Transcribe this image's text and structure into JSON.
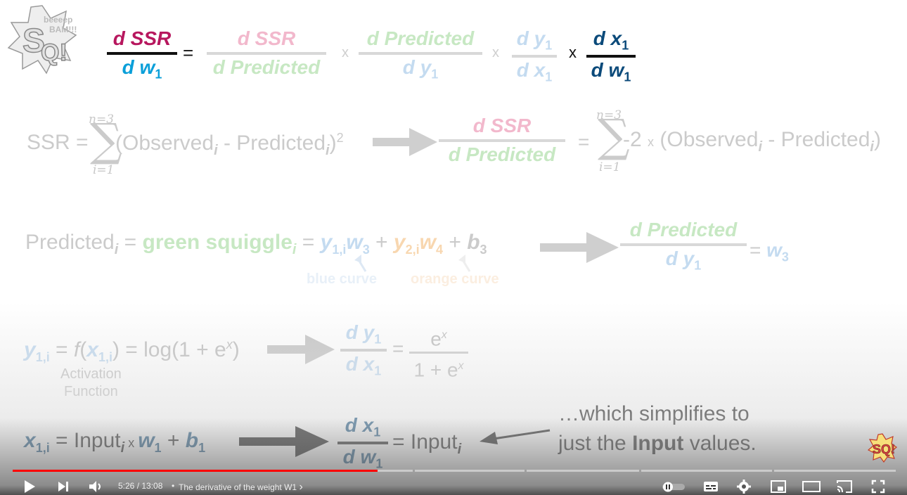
{
  "slide": {
    "chain": {
      "lhs_num": "d SSR",
      "lhs_den_d": "d ",
      "lhs_den_w": "w",
      "lhs_den_sub": "1",
      "equals": "=",
      "f1_num": "d SSR",
      "f1_den": "d Predicted",
      "times1": "x",
      "f2_num": "d Predicted",
      "f2_den_d": "d y",
      "f2_den_sub": "1",
      "times2": "x",
      "f3_num_d": "d y",
      "f3_num_sub": "1",
      "f3_den_d": "d x",
      "f3_den_sub": "1",
      "times3": "x",
      "f4_num_d": "d x",
      "f4_num_sub": "1",
      "f4_den_d": "d w",
      "f4_den_sub": "1"
    },
    "ssr": {
      "lhs": "SSR =",
      "sum_top": "n=3",
      "sum_bottom": "i=1",
      "term_open": "(Observed",
      "term_i1": "i",
      "term_mid": " - Predicted",
      "term_i2": "i",
      "term_close": ")",
      "sup": "2",
      "deriv_num": "d SSR",
      "deriv_den": "d Predicted",
      "rhs_eq": "=",
      "rhs_sum_top": "n=3",
      "rhs_sum_bottom": "i=1",
      "rhs_minus2": "-2",
      "rhs_times": "x",
      "rhs_open": "(Observed",
      "rhs_i1": "i",
      "rhs_mid": " - Predicted",
      "rhs_i2": "i",
      "rhs_close": ")"
    },
    "predicted": {
      "lhs": "Predicted",
      "lhs_i": "i",
      "eq1": " = ",
      "green": "green squiggle",
      "green_i": "i",
      "eq2": " = ",
      "y1": "y",
      "y1_sub": "1,i",
      "w3": "w",
      "w3_sub": "3",
      "plus1": " + ",
      "y2": "y",
      "y2_sub": "2,i",
      "w4": "w",
      "w4_sub": "4",
      "plus2": " + ",
      "b3": "b",
      "b3_sub": "3",
      "deriv_num": "d Predicted",
      "deriv_den_d": "d y",
      "deriv_den_sub": "1",
      "rhs_eq": "=",
      "rhs_w": "w",
      "rhs_w_sub": "3",
      "blue_label": "blue curve",
      "orange_label": "orange curve"
    },
    "activation": {
      "y": "y",
      "y_sub": "1,i",
      "eq1": " = ",
      "f": "f",
      "open": "(",
      "x": "x",
      "x_sub": "1,i",
      "close": ") = log(1 + e",
      "sup_x": "x",
      "close2": ")",
      "label_line1": "Activation",
      "label_line2": "Function",
      "deriv_num_d": "d y",
      "deriv_num_sub": "1",
      "deriv_den_d": "d x",
      "deriv_den_sub": "1",
      "rhs_eq": "=",
      "rhs_num": "e",
      "rhs_num_sup": "x",
      "rhs_den": "1 + e",
      "rhs_den_sup": "x"
    },
    "input_eq": {
      "x": "x",
      "x_sub": "1,i",
      "eq": " = Input",
      "i": "i",
      "times": " x ",
      "w": "w",
      "w_sub": "1",
      "plus": " + ",
      "b": "b",
      "b_sub": "1",
      "deriv_num_d": "d x",
      "deriv_num_sub": "1",
      "deriv_den_d": "d w",
      "deriv_den_sub": "1",
      "rhs_eq": "= Input",
      "rhs_i": "i",
      "note_line1": "…which simplifies to",
      "note_line2_a": "just the ",
      "note_line2_b": "Input",
      "note_line2_c": " values."
    },
    "logo_text": "BAM!!!",
    "logo_text2": "beeeep"
  },
  "player": {
    "time_current": "5:26",
    "time_sep": " / ",
    "time_total": "13:08",
    "bullet": "•",
    "chapter_title": "The derivative of the weight W1",
    "chapter_chevron": "›",
    "progress_fraction": 0.413,
    "icons": {
      "play": "play-icon",
      "next": "next-icon",
      "volume": "volume-icon",
      "autoplay": "autoplay-toggle-icon",
      "subtitles": "subtitles-icon",
      "settings": "gear-icon",
      "miniplayer": "miniplayer-icon",
      "theater": "theater-icon",
      "cast": "cast-icon",
      "fullscreen": "fullscreen-icon"
    }
  },
  "colors": {
    "ssr_red": "#b7175e",
    "blue": "#0a9fd9",
    "dark_blue": "#0b4a7a",
    "faded_pink": "#f2b8cc",
    "faded_green": "#c7e8c3",
    "faded_blue": "#c4dbf0",
    "faded_orange": "#f8d7b0",
    "gray_text": "#cbcbcb",
    "progress_red": "#ff0000"
  }
}
